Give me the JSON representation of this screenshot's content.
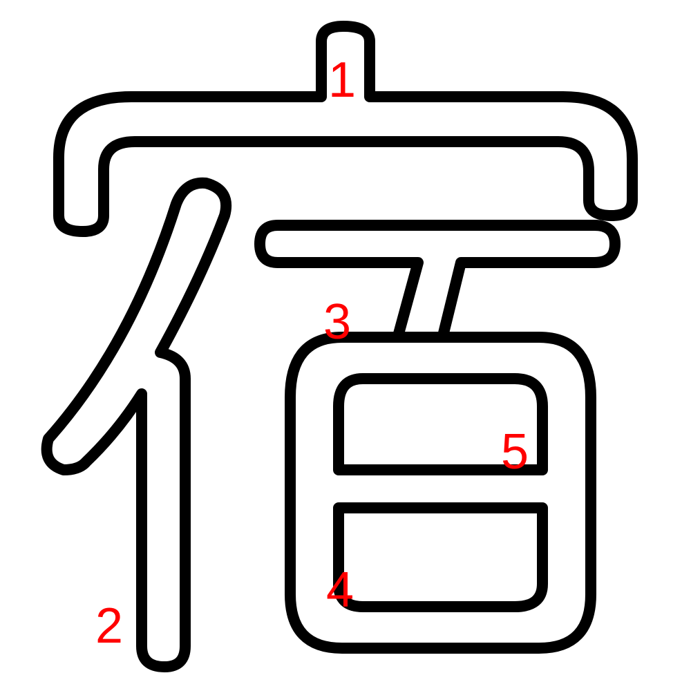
{
  "colors": {
    "outline": "#000000",
    "fill": "#ffffff",
    "number": "#ff0000",
    "background": "#ffffff"
  },
  "stroke_numbers": [
    "1",
    "2",
    "3",
    "4",
    "5"
  ]
}
